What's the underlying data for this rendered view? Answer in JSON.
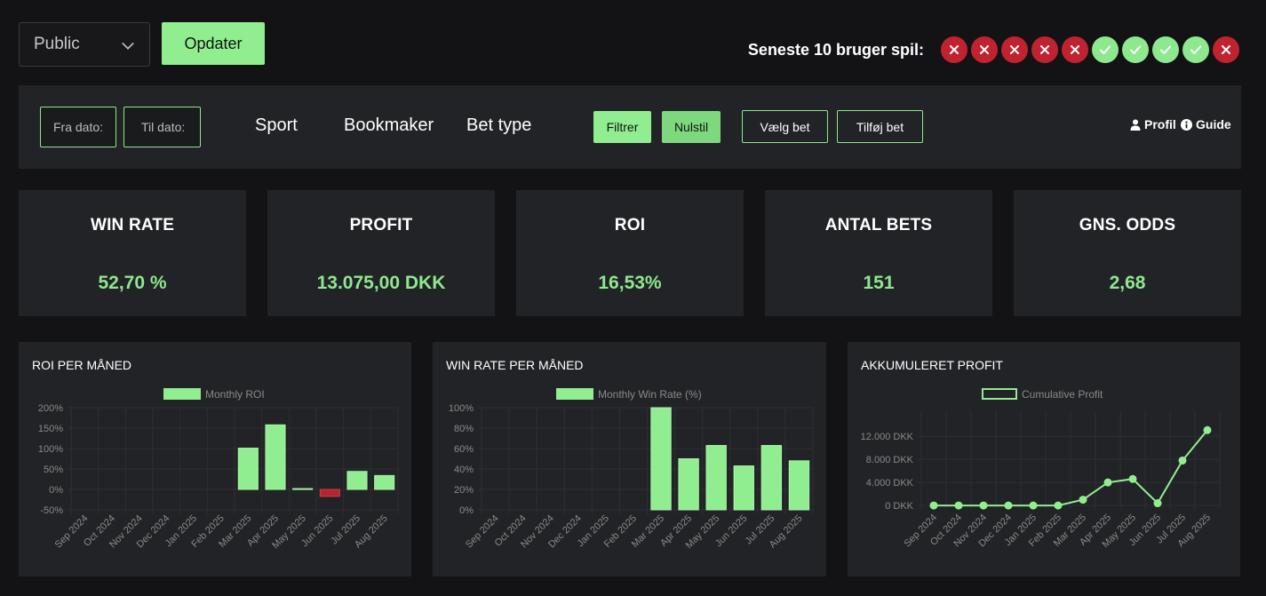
{
  "top": {
    "select_value": "Public",
    "update_label": "Opdater",
    "recent_label": "Seneste 10 bruger spil:",
    "recent_results": [
      "loss",
      "loss",
      "loss",
      "loss",
      "loss",
      "win",
      "win",
      "win",
      "win",
      "loss"
    ]
  },
  "filters": {
    "from_date_placeholder": "Fra dato:",
    "to_date_placeholder": "Til dato:",
    "sport": "Sport",
    "bookmaker": "Bookmaker",
    "bet_type": "Bet type",
    "filter_label": "Filtrer",
    "reset_label": "Nulstil",
    "choose_bet_label": "Vælg bet",
    "add_bet_label": "Tilføj bet",
    "profile_label": "Profil",
    "guide_label": "Guide"
  },
  "stats": [
    {
      "title": "WIN RATE",
      "value": "52,70 %"
    },
    {
      "title": "PROFIT",
      "value": "13.075,00 DKK"
    },
    {
      "title": "ROI",
      "value": "16,53%"
    },
    {
      "title": "ANTAL BETS",
      "value": "151"
    },
    {
      "title": "GNS. ODDS",
      "value": "2,68"
    }
  ],
  "colors": {
    "accent": "#90ee90",
    "loss": "#c0232f",
    "panel": "#222326",
    "bg": "#131316"
  },
  "chart_data": [
    {
      "type": "bar",
      "title": "ROI PER MÅNED",
      "legend": "Monthly ROI",
      "categories": [
        "Sep 2024",
        "Oct 2024",
        "Nov 2024",
        "Dec 2024",
        "Jan 2025",
        "Feb 2025",
        "Mar 2025",
        "Apr 2025",
        "May 2025",
        "Jun 2025",
        "Jul 2025",
        "Aug 2025"
      ],
      "values": [
        0,
        0,
        0,
        0,
        0,
        0,
        101,
        158,
        2,
        -17,
        44,
        34
      ],
      "ylim": [
        -50,
        200
      ],
      "yticks": [
        -50,
        0,
        50,
        100,
        150,
        200
      ],
      "ytick_labels": [
        "-50%",
        "0%",
        "50%",
        "100%",
        "150%",
        "200%"
      ]
    },
    {
      "type": "bar",
      "title": "WIN RATE PER MÅNED",
      "legend": "Monthly Win Rate (%)",
      "categories": [
        "Sep 2024",
        "Oct 2024",
        "Nov 2024",
        "Dec 2024",
        "Jan 2025",
        "Feb 2025",
        "Mar 2025",
        "Apr 2025",
        "May 2025",
        "Jun 2025",
        "Jul 2025",
        "Aug 2025"
      ],
      "values": [
        0,
        0,
        0,
        0,
        0,
        0,
        100,
        50,
        63,
        43,
        63,
        48
      ],
      "ylim": [
        0,
        100
      ],
      "yticks": [
        0,
        20,
        40,
        60,
        80,
        100
      ],
      "ytick_labels": [
        "0%",
        "20%",
        "40%",
        "60%",
        "80%",
        "100%"
      ]
    },
    {
      "type": "line",
      "title": "AKKUMULERET PROFIT",
      "legend": "Cumulative Profit",
      "categories": [
        "Sep 2024",
        "Oct 2024",
        "Nov 2024",
        "Dec 2024",
        "Jan 2025",
        "Feb 2025",
        "Mar 2025",
        "Apr 2025",
        "May 2025",
        "Jun 2025",
        "Jul 2025",
        "Aug 2025"
      ],
      "values": [
        0,
        0,
        0,
        0,
        0,
        0,
        1000,
        4000,
        4600,
        400,
        7800,
        13075
      ],
      "ylim": [
        -600,
        14500
      ],
      "yticks": [
        0,
        4000,
        8000,
        12000
      ],
      "ytick_labels": [
        "0 DKK",
        "4.000 DKK",
        "8.000 DKK",
        "12.000 DKK"
      ]
    }
  ]
}
